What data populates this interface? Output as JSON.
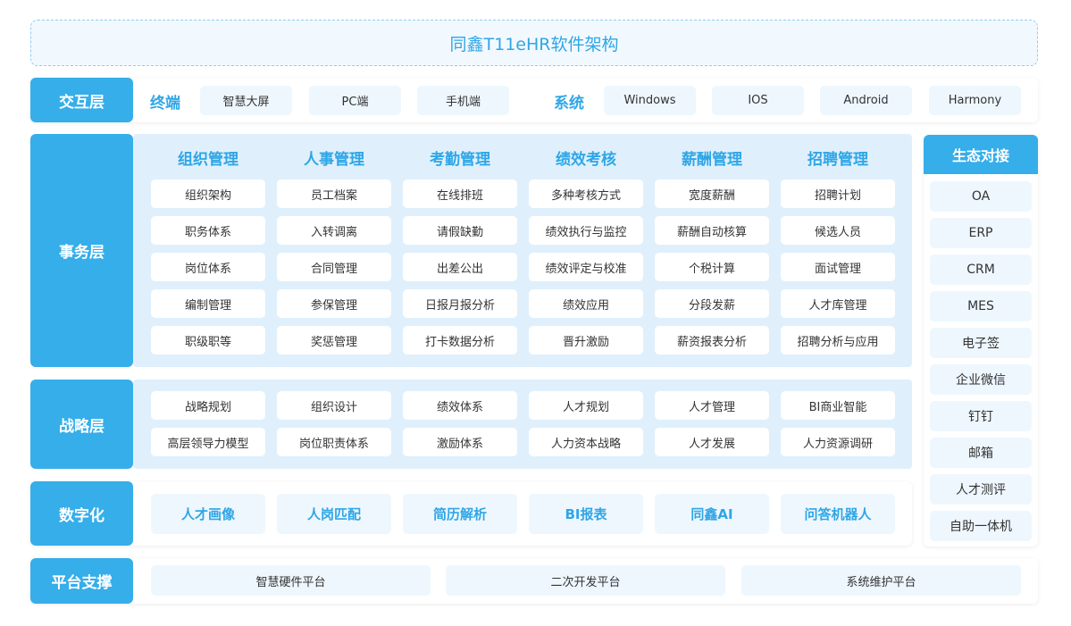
{
  "title": "同鑫T11eHR软件架构",
  "interaction": {
    "label": "交互层",
    "terminal_label": "终端",
    "terminals": [
      "智慧大屏",
      "PC端",
      "手机端"
    ],
    "system_label": "系统",
    "systems": [
      "Windows",
      "IOS",
      "Android",
      "Harmony"
    ]
  },
  "affairs": {
    "label": "事务层",
    "columns": [
      {
        "header": "组织管理",
        "items": [
          "组织架构",
          "职务体系",
          "岗位体系",
          "编制管理",
          "职级职等"
        ]
      },
      {
        "header": "人事管理",
        "items": [
          "员工档案",
          "入转调离",
          "合同管理",
          "参保管理",
          "奖惩管理"
        ]
      },
      {
        "header": "考勤管理",
        "items": [
          "在线排班",
          "请假缺勤",
          "出差公出",
          "日报月报分析",
          "打卡数据分析"
        ]
      },
      {
        "header": "绩效考核",
        "items": [
          "多种考核方式",
          "绩效执行与监控",
          "绩效评定与校准",
          "绩效应用",
          "晋升激励"
        ]
      },
      {
        "header": "薪酬管理",
        "items": [
          "宽度薪酬",
          "薪酬自动核算",
          "个税计算",
          "分段发薪",
          "薪资报表分析"
        ]
      },
      {
        "header": "招聘管理",
        "items": [
          "招聘计划",
          "候选人员",
          "面试管理",
          "人才库管理",
          "招聘分析与应用"
        ]
      }
    ]
  },
  "strategy": {
    "label": "战略层",
    "rows": [
      [
        "战略规划",
        "组织设计",
        "绩效体系",
        "人才规划",
        "人才管理",
        "BI商业智能"
      ],
      [
        "高层领导力模型",
        "岗位职责体系",
        "激励体系",
        "人力资本战略",
        "人才发展",
        "人力资源调研"
      ]
    ]
  },
  "digital": {
    "label": "数字化",
    "items": [
      "人才画像",
      "人岗匹配",
      "简历解析",
      "BI报表",
      "同鑫AI",
      "问答机器人"
    ]
  },
  "platform": {
    "label": "平台支撑",
    "items": [
      "智慧硬件平台",
      "二次开发平台",
      "系统维护平台"
    ]
  },
  "ecosystem": {
    "label": "生态对接",
    "items": [
      "OA",
      "ERP",
      "CRM",
      "MES",
      "电子签",
      "企业微信",
      "钉钉",
      "邮箱",
      "人才测评",
      "自助一体机"
    ]
  },
  "colors": {
    "accent": "#35aeea",
    "panel": "#dff0fc",
    "item_light": "#eef7fe"
  }
}
